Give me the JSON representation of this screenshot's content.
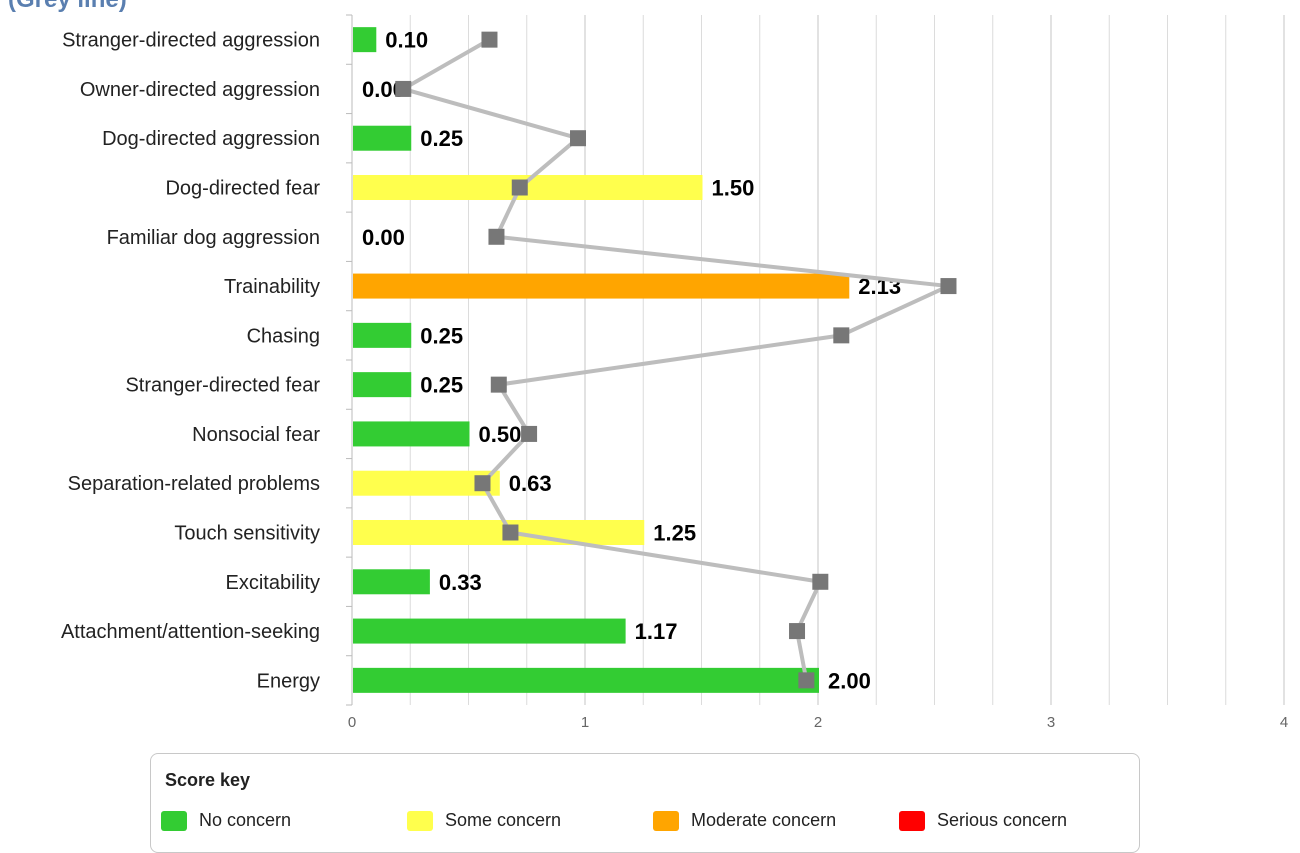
{
  "header": {
    "title_fragment": "(Grey line)"
  },
  "chart_data": {
    "type": "bar",
    "orientation": "horizontal",
    "categories": [
      "Stranger-directed aggression",
      "Owner-directed aggression",
      "Dog-directed aggression",
      "Dog-directed fear",
      "Familiar dog aggression",
      "Trainability",
      "Chasing",
      "Stranger-directed fear",
      "Nonsocial fear",
      "Separation-related problems",
      "Touch sensitivity",
      "Excitability",
      "Attachment/attention-seeking",
      "Energy"
    ],
    "values": [
      0.1,
      0.0,
      0.25,
      1.5,
      0.0,
      2.13,
      0.25,
      0.25,
      0.5,
      0.63,
      1.25,
      0.33,
      1.17,
      2.0
    ],
    "value_labels": [
      "0.10",
      "0.00",
      "0.25",
      "1.50",
      "0.00",
      "2.13",
      "0.25",
      "0.25",
      "0.50",
      "0.63",
      "1.25",
      "0.33",
      "1.17",
      "2.00"
    ],
    "concern_levels": [
      "none",
      "none",
      "none",
      "some",
      "none",
      "moderate",
      "none",
      "none",
      "none",
      "some",
      "some",
      "none",
      "none",
      "none"
    ],
    "grey_line_values": [
      0.59,
      0.22,
      0.97,
      0.72,
      0.62,
      2.56,
      2.1,
      0.63,
      0.76,
      0.56,
      0.68,
      2.01,
      1.91,
      1.95
    ],
    "xlim": [
      0,
      4
    ],
    "xticks": [
      "0",
      "1",
      "2",
      "3",
      "4"
    ],
    "grid": true,
    "colors": {
      "none": "#33cc33",
      "some": "#ffff4d",
      "moderate": "#ffa500",
      "serious": "#ff0000",
      "grey_line": "#bdbdbd",
      "grey_marker": "#777777"
    }
  },
  "legend": {
    "title": "Score key",
    "items": [
      {
        "label": "No concern",
        "color": "#33cc33"
      },
      {
        "label": "Some concern",
        "color": "#ffff4d"
      },
      {
        "label": "Moderate concern",
        "color": "#ffa500"
      },
      {
        "label": "Serious concern",
        "color": "#ff0000"
      }
    ]
  }
}
